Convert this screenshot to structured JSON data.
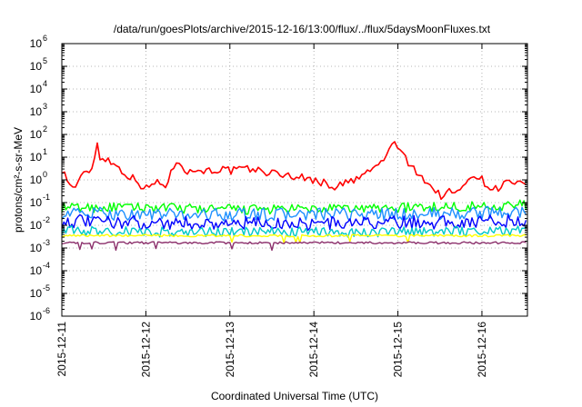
{
  "chart_data": {
    "type": "line",
    "title": "/data/run/goesPlots/archive/2015-12-16/13:00/flux/../flux/5daysMoonFluxes.txt",
    "xlabel": "Coordinated Universal Time (UTC)",
    "ylabel": "protons/cm²-s-sr-MeV",
    "y_scale": "log",
    "ylim_exponents": [
      -6,
      6
    ],
    "y_ticks": [
      {
        "base": "10",
        "exp": "-6"
      },
      {
        "base": "10",
        "exp": "-5"
      },
      {
        "base": "10",
        "exp": "-4"
      },
      {
        "base": "10",
        "exp": "-3"
      },
      {
        "base": "10",
        "exp": "-2"
      },
      {
        "base": "10",
        "exp": "-1"
      },
      {
        "base": "10",
        "exp": "0"
      },
      {
        "base": "10",
        "exp": "1"
      },
      {
        "base": "10",
        "exp": "2"
      },
      {
        "base": "10",
        "exp": "3"
      },
      {
        "base": "10",
        "exp": "4"
      },
      {
        "base": "10",
        "exp": "5"
      },
      {
        "base": "10",
        "exp": "6"
      }
    ],
    "x_ticks": [
      "2015-12-11",
      "2015-12-12",
      "2015-12-13",
      "2015-12-14",
      "2015-12-15",
      "2015-12-16"
    ],
    "xlim": [
      "2015-12-11T00:00",
      "2015-12-16T13:00"
    ],
    "grid": true,
    "legend": "none",
    "series": [
      {
        "color": "#ff0000",
        "x": [
          "2015-12-11T00:00",
          "2015-12-11T03:00",
          "2015-12-11T06:00",
          "2015-12-11T09:00",
          "2015-12-11T10:12",
          "2015-12-11T11:00",
          "2015-12-11T12:00",
          "2015-12-11T15:00",
          "2015-12-11T18:00",
          "2015-12-11T21:00",
          "2015-12-12T00:00",
          "2015-12-12T03:00",
          "2015-12-12T06:00",
          "2015-12-12T09:00",
          "2015-12-12T12:00",
          "2015-12-12T15:00",
          "2015-12-12T18:00",
          "2015-12-12T21:00",
          "2015-12-13T00:00",
          "2015-12-13T06:00",
          "2015-12-13T12:00",
          "2015-12-13T18:00",
          "2015-12-14T00:00",
          "2015-12-14T06:00",
          "2015-12-14T12:00",
          "2015-12-14T15:00",
          "2015-12-14T18:00",
          "2015-12-14T21:00",
          "2015-12-14T23:00",
          "2015-12-15T01:00",
          "2015-12-15T03:00",
          "2015-12-15T06:00",
          "2015-12-15T09:00",
          "2015-12-15T12:00",
          "2015-12-15T15:00",
          "2015-12-15T18:00",
          "2015-12-15T21:00",
          "2015-12-16T00:00",
          "2015-12-16T02:00",
          "2015-12-16T04:00",
          "2015-12-16T07:00",
          "2015-12-16T10:00",
          "2015-12-16T13:00"
        ],
        "y": [
          3,
          0.4,
          1.5,
          4,
          55,
          8,
          10,
          5,
          2,
          1,
          0.4,
          0.8,
          0.6,
          10,
          2,
          3,
          2.5,
          3,
          2.5,
          3,
          2,
          1.5,
          1,
          0.5,
          1,
          2,
          4,
          12,
          60,
          15,
          5,
          2,
          0.6,
          0.2,
          0.3,
          0.3,
          2,
          1,
          0.5,
          0.4,
          0.8,
          0.7,
          0.5
        ]
      },
      {
        "color": "#00ff00",
        "x": [
          "2015-12-11T00:00",
          "2015-12-12T00:00",
          "2015-12-13T00:00",
          "2015-12-14T00:00",
          "2015-12-15T00:00",
          "2015-12-16T00:00",
          "2015-12-16T13:00"
        ],
        "y": [
          0.06,
          0.06,
          0.05,
          0.05,
          0.06,
          0.07,
          0.08
        ]
      },
      {
        "color": "#1e90ff",
        "x": [
          "2015-12-11T00:00",
          "2015-12-12T00:00",
          "2015-12-13T00:00",
          "2015-12-14T00:00",
          "2015-12-15T00:00",
          "2015-12-16T00:00",
          "2015-12-16T13:00"
        ],
        "y": [
          0.035,
          0.03,
          0.03,
          0.03,
          0.03,
          0.035,
          0.04
        ]
      },
      {
        "color": "#0000ff",
        "x": [
          "2015-12-11T00:00",
          "2015-12-12T00:00",
          "2015-12-13T00:00",
          "2015-12-14T00:00",
          "2015-12-15T00:00",
          "2015-12-16T00:00",
          "2015-12-16T13:00"
        ],
        "y": [
          0.015,
          0.013,
          0.012,
          0.012,
          0.013,
          0.015,
          0.016
        ]
      },
      {
        "color": "#00c8c8",
        "x": [
          "2015-12-11T00:00",
          "2015-12-12T00:00",
          "2015-12-13T00:00",
          "2015-12-14T00:00",
          "2015-12-15T00:00",
          "2015-12-16T00:00",
          "2015-12-16T13:00"
        ],
        "y": [
          0.006,
          0.005,
          0.005,
          0.005,
          0.005,
          0.006,
          0.006
        ]
      },
      {
        "color": "#ffff00",
        "x": [
          "2015-12-11T00:00",
          "2015-12-12T00:00",
          "2015-12-13T00:00",
          "2015-12-14T00:00",
          "2015-12-15T00:00",
          "2015-12-16T00:00",
          "2015-12-16T13:00"
        ],
        "y": [
          0.0035,
          0.0035,
          0.0035,
          0.0035,
          0.0035,
          0.0035,
          0.0035
        ]
      },
      {
        "color": "#8b2f6b",
        "x": [
          "2015-12-11T00:00",
          "2015-12-12T00:00",
          "2015-12-13T00:00",
          "2015-12-14T00:00",
          "2015-12-15T00:00",
          "2015-12-16T00:00",
          "2015-12-16T13:00"
        ],
        "y": [
          0.0017,
          0.0017,
          0.0017,
          0.0017,
          0.0017,
          0.0017,
          0.0017
        ]
      }
    ]
  }
}
